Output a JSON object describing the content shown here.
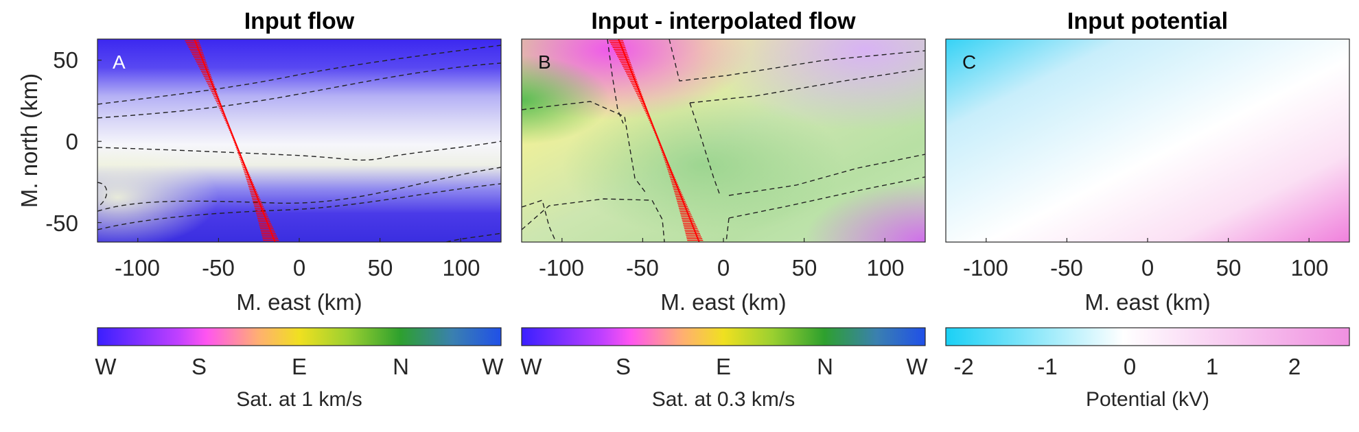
{
  "chart_data": [
    {
      "type": "heatmap",
      "title": "Input flow",
      "panel_label": "A",
      "xlabel": "M. east (km)",
      "ylabel": "M. north (km)",
      "xlim": [
        -125,
        125
      ],
      "ylim": [
        -62,
        63
      ],
      "xticks": [
        "-100",
        "-50",
        "0",
        "50",
        "100"
      ],
      "yticks": [
        "50",
        "0",
        "-50"
      ],
      "colorbar": {
        "label": "Sat. at 1 km/s",
        "ticks": [
          "W",
          "S",
          "E",
          "N",
          "W"
        ]
      },
      "background": "blue/white flow field, near white band around y≈0",
      "satellite_track": {
        "color": "#ff0000",
        "from": [
          -65,
          63
        ],
        "to": [
          -15,
          -62
        ]
      }
    },
    {
      "type": "heatmap",
      "title": "Input - interpolated flow",
      "panel_label": "B",
      "xlabel": "M. east (km)",
      "xlim": [
        -125,
        125
      ],
      "ylim": [
        -62,
        63
      ],
      "xticks": [
        "-100",
        "-50",
        "0",
        "50",
        "100"
      ],
      "colorbar": {
        "label": "Sat. at 0.3 km/s",
        "ticks": [
          "W",
          "S",
          "E",
          "N",
          "W"
        ]
      },
      "background": "mixed magenta / yellow / green residual field",
      "satellite_track": {
        "color": "#ff0000",
        "from": [
          -65,
          63
        ],
        "to": [
          -15,
          -62
        ]
      }
    },
    {
      "type": "heatmap",
      "title": "Input potential",
      "panel_label": "C",
      "xlabel": "M. east (km)",
      "xlim": [
        -125,
        125
      ],
      "ylim": [
        -62,
        63
      ],
      "xticks": [
        "-100",
        "-50",
        "0",
        "50",
        "100"
      ],
      "colorbar": {
        "label": "Potential (kV)",
        "ticks": [
          "-2",
          "-1",
          "0",
          "1",
          "2"
        ],
        "range": [
          -2.2,
          2.6
        ]
      },
      "background": "cyan at upper-left, white center, pink at lower-right"
    }
  ],
  "colors": {
    "sat_colormap": [
      "#3a1fff",
      "#ff55ff",
      "#ffd070",
      "#e6e600",
      "#2eaa2e",
      "#2050e8"
    ],
    "potential_colormap": [
      "#1ad0f5",
      "#ffffff",
      "#f090e0"
    ],
    "track": "#ff0000"
  }
}
